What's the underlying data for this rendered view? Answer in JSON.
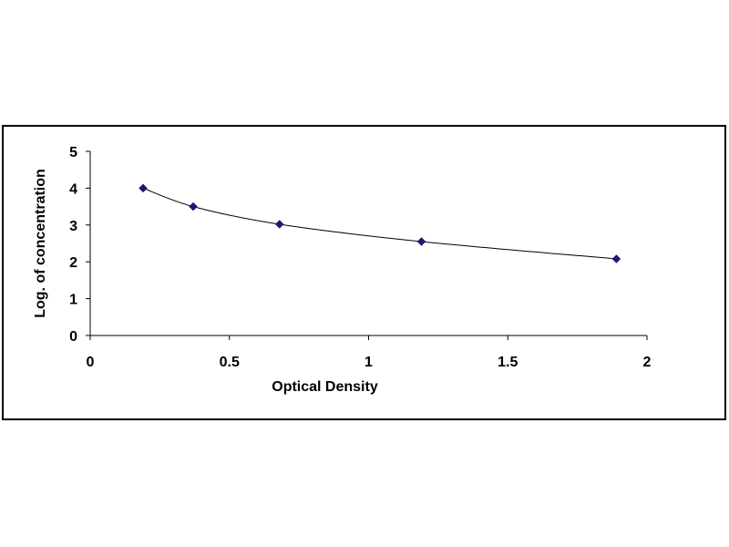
{
  "chart_data": {
    "type": "scatter",
    "title": "",
    "xlabel": "Optical Density",
    "ylabel": "Log. of concentration",
    "xlim": [
      0,
      2
    ],
    "ylim": [
      0,
      5
    ],
    "xticks": [
      0,
      0.5,
      1,
      1.5,
      2
    ],
    "xtick_labels": [
      "0",
      "0.5",
      "1",
      "1.5",
      "2"
    ],
    "yticks": [
      0,
      1,
      2,
      3,
      4,
      5
    ],
    "ytick_labels": [
      "0",
      "1",
      "2",
      "3",
      "4",
      "5"
    ],
    "grid": false,
    "legend": "none",
    "trendline": "smooth curve through points",
    "colors": {
      "marker": "#1a1a6e",
      "line": "#000000",
      "axis": "#000000"
    },
    "series": [
      {
        "x": [
          0.19,
          0.37,
          0.68,
          1.19,
          1.89
        ],
        "y": [
          4.0,
          3.5,
          3.02,
          2.55,
          2.08
        ]
      }
    ]
  }
}
